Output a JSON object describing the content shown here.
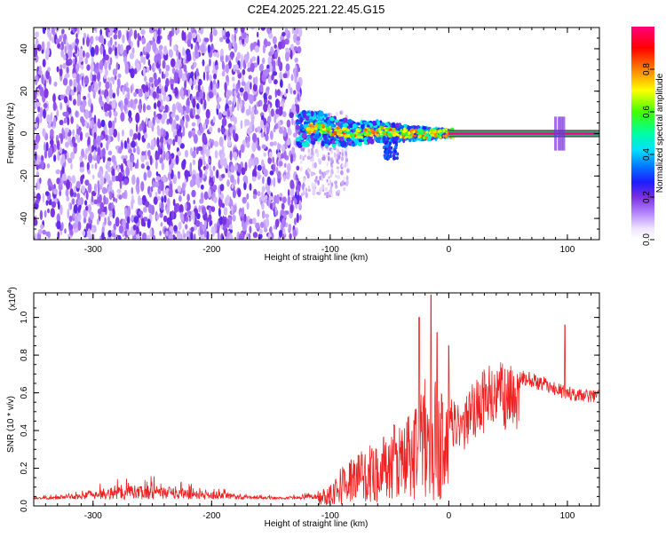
{
  "title": "C2E4.2025.221.22.45.G15",
  "colors": {
    "snr_line": "#ee2222",
    "spectrogram_scatter": "#7a2fe0",
    "axis": "#000000"
  },
  "chart_data": [
    {
      "type": "heatmap",
      "title": "C2E4.2025.221.22.45.G15",
      "xlabel": "Height of straight line (km)",
      "ylabel": "Frequency (Hz)",
      "xlim": [
        -350,
        127
      ],
      "ylim": [
        -50,
        50
      ],
      "xticks": [
        -300,
        -200,
        -100,
        0,
        100
      ],
      "yticks": [
        -40,
        -20,
        0,
        20,
        40
      ],
      "colorbar": {
        "label": "Normalized spectral amplitude",
        "range": [
          0,
          1
        ],
        "ticks": [
          0.0,
          0.2,
          0.4,
          0.6,
          0.8
        ],
        "tick_labels": [
          "0.0",
          "0.2",
          "0.4",
          "0.6",
          "0.8"
        ],
        "colormap": "rainbow (white-purple-blue-cyan-green-yellow-red-magenta)"
      },
      "features": {
        "noise_region_x": [
          -350,
          -125
        ],
        "signal_trace": [
          {
            "x": -125,
            "y": 2
          },
          {
            "x": -110,
            "y": 3
          },
          {
            "x": -100,
            "y": 1
          },
          {
            "x": -80,
            "y": 0
          },
          {
            "x": -60,
            "y": 1
          },
          {
            "x": -40,
            "y": 0
          },
          {
            "x": -20,
            "y": 0
          },
          {
            "x": 0,
            "y": 0
          },
          {
            "x": 50,
            "y": 0
          },
          {
            "x": 100,
            "y": 0
          },
          {
            "x": 127,
            "y": 0
          }
        ],
        "steady_tone_x": [
          0,
          127
        ],
        "steady_tone_y": 0
      }
    },
    {
      "type": "line",
      "xlabel": "Height of straight line (km)",
      "ylabel": "SNR (10 * v/v)",
      "y_multiplier_label": "(x10",
      "y_multiplier_exp": "4",
      "y_multiplier_close": ")",
      "xlim": [
        -350,
        127
      ],
      "ylim": [
        0,
        1.13
      ],
      "xticks": [
        -300,
        -200,
        -100,
        0,
        100
      ],
      "yticks": [
        0.0,
        0.2,
        0.4,
        0.6,
        0.8,
        1.0
      ],
      "ytick_labels": [
        "0.0",
        "0.2",
        "0.4",
        "0.6",
        "0.8",
        "1.0"
      ],
      "series": [
        {
          "envelope": [
            {
              "x": -350,
              "y": 0.04
            },
            {
              "x": -320,
              "y": 0.05
            },
            {
              "x": -290,
              "y": 0.09
            },
            {
              "x": -260,
              "y": 0.11
            },
            {
              "x": -230,
              "y": 0.09
            },
            {
              "x": -200,
              "y": 0.07
            },
            {
              "x": -170,
              "y": 0.05
            },
            {
              "x": -140,
              "y": 0.04
            },
            {
              "x": -110,
              "y": 0.06
            },
            {
              "x": -100,
              "y": 0.12
            },
            {
              "x": -90,
              "y": 0.2
            },
            {
              "x": -80,
              "y": 0.25
            },
            {
              "x": -70,
              "y": 0.28
            },
            {
              "x": -60,
              "y": 0.32
            },
            {
              "x": -50,
              "y": 0.38
            },
            {
              "x": -40,
              "y": 0.42
            },
            {
              "x": -30,
              "y": 0.5
            },
            {
              "x": -20,
              "y": 0.62
            },
            {
              "x": -10,
              "y": 0.6
            },
            {
              "x": 0,
              "y": 0.56
            },
            {
              "x": 10,
              "y": 0.5
            },
            {
              "x": 20,
              "y": 0.62
            },
            {
              "x": 30,
              "y": 0.7
            },
            {
              "x": 40,
              "y": 0.73
            },
            {
              "x": 50,
              "y": 0.72
            },
            {
              "x": 60,
              "y": 0.7
            },
            {
              "x": 70,
              "y": 0.68
            },
            {
              "x": 80,
              "y": 0.66
            },
            {
              "x": 90,
              "y": 0.63
            },
            {
              "x": 100,
              "y": 0.61
            },
            {
              "x": 110,
              "y": 0.6
            },
            {
              "x": 127,
              "y": 0.59
            }
          ],
          "spikes": [
            {
              "x": -25,
              "y": 1.0
            },
            {
              "x": -15,
              "y": 1.12
            },
            {
              "x": -10,
              "y": 0.92
            },
            {
              "x": 0,
              "y": 0.85
            },
            {
              "x": 98,
              "y": 0.96
            }
          ]
        }
      ]
    }
  ]
}
